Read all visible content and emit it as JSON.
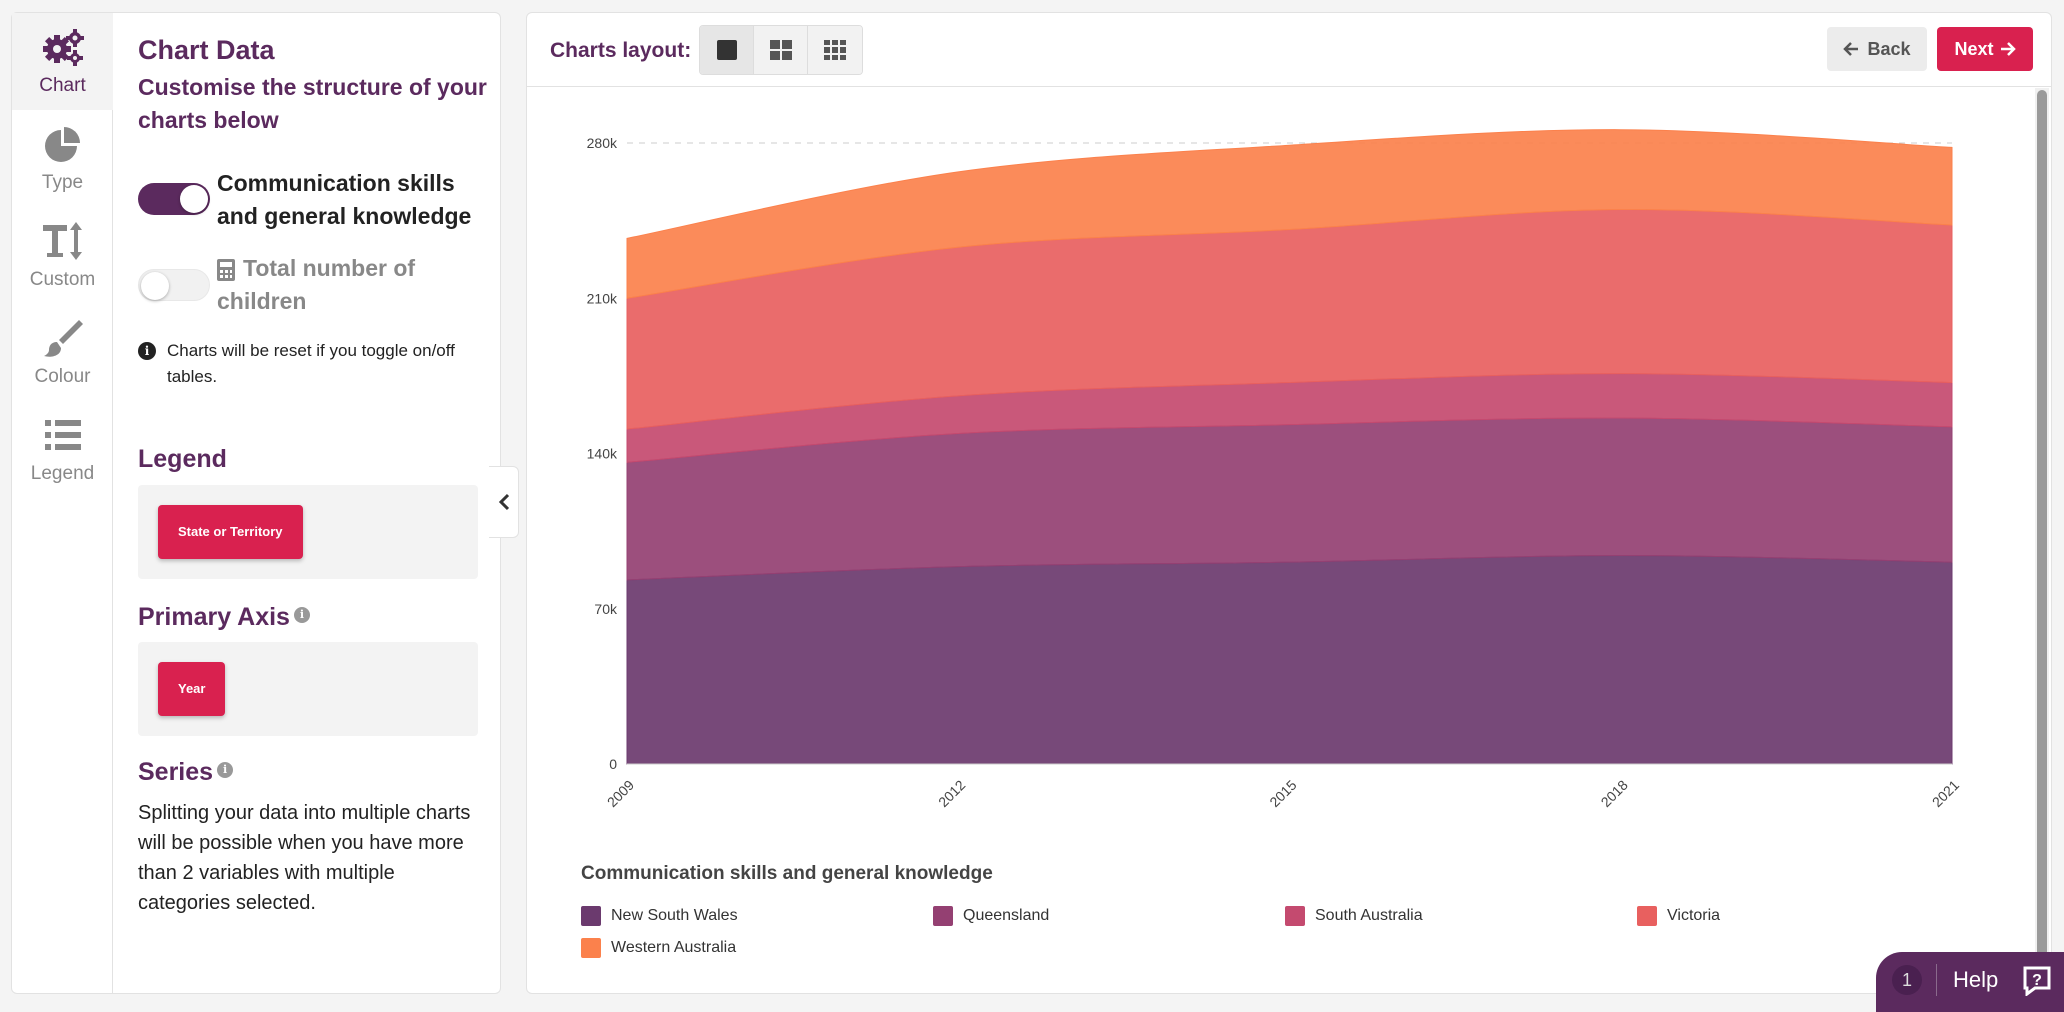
{
  "sidebar": {
    "nav": [
      {
        "label": "Chart",
        "icon": "gears-icon"
      },
      {
        "label": "Type",
        "icon": "pie-chart-icon"
      },
      {
        "label": "Custom",
        "icon": "text-height-icon"
      },
      {
        "label": "Colour",
        "icon": "paint-brush-icon"
      },
      {
        "label": "Legend",
        "icon": "list-icon"
      }
    ]
  },
  "config": {
    "title": "Chart Data",
    "subtitle": "Customise the structure of your charts below",
    "toggles": [
      {
        "label": "Communication skills and general knowledge",
        "on": true
      },
      {
        "label": "Total number of children",
        "on": false
      }
    ],
    "notice": "Charts will be reset if you toggle on/off tables.",
    "legend_title": "Legend",
    "legend_chip": "State or Territory",
    "primary_axis_title": "Primary Axis",
    "primary_axis_chip": "Year",
    "series_title": "Series",
    "series_text": "Splitting your data into multiple charts will be possible when you have more than 2 variables with multiple categories selected."
  },
  "toolbar": {
    "layout_label": "Charts layout:",
    "back_label": "Back",
    "next_label": "Next"
  },
  "chart_data": {
    "type": "area",
    "stacked": true,
    "title": "",
    "xlabel": "",
    "ylabel": "",
    "x": [
      2009,
      2012,
      2015,
      2018,
      2021
    ],
    "x_ticks": [
      "2009",
      "2012",
      "2015",
      "2018",
      "2021"
    ],
    "y_ticks": [
      "0",
      "70k",
      "140k",
      "210k",
      "280k"
    ],
    "ylim": [
      0,
      280000
    ],
    "series": [
      {
        "name": "New South Wales",
        "color": "#6b3a6e",
        "values": [
          83000,
          89000,
          91000,
          94000,
          91000
        ]
      },
      {
        "name": "Queensland",
        "color": "#944072",
        "values": [
          53000,
          60000,
          62000,
          62000,
          61000
        ]
      },
      {
        "name": "South Australia",
        "color": "#c44a6f",
        "values": [
          15000,
          17000,
          19000,
          20000,
          20000
        ]
      },
      {
        "name": "Victoria",
        "color": "#e8605f",
        "values": [
          59000,
          67000,
          69000,
          74000,
          71000
        ]
      },
      {
        "name": "Western Australia",
        "color": "#fb814c",
        "values": [
          27000,
          34000,
          38000,
          36000,
          35000
        ]
      }
    ],
    "legend_title": "Communication skills and general knowledge",
    "legend_position": "bottom",
    "grid": false
  },
  "help": {
    "count": "1",
    "label": "Help"
  }
}
